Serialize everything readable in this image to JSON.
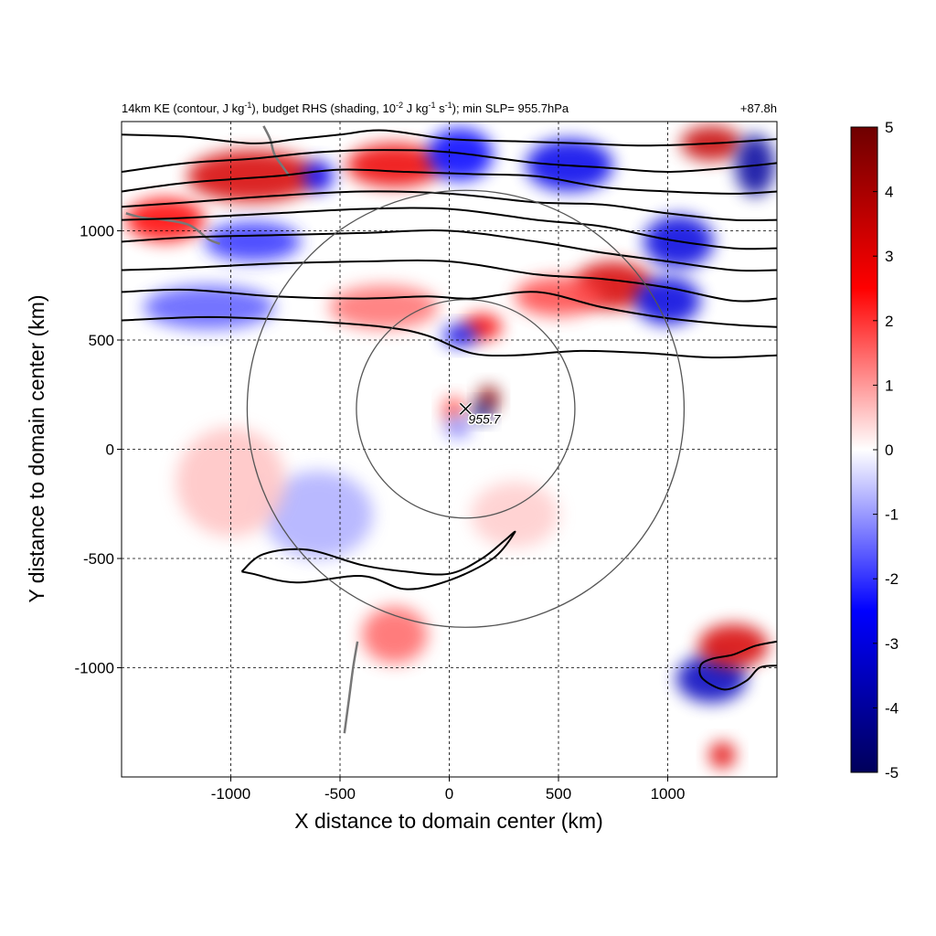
{
  "header": {
    "title_parts": [
      {
        "t": "14km KE (contour, J kg",
        "sup": false
      },
      {
        "t": "-1",
        "sup": true
      },
      {
        "t": "), budget RHS (shading, 10",
        "sup": false
      },
      {
        "t": "-2",
        "sup": true
      },
      {
        "t": " J kg",
        "sup": false
      },
      {
        "t": "-1",
        "sup": true
      },
      {
        "t": " s",
        "sup": false
      },
      {
        "t": "-1",
        "sup": true
      },
      {
        "t": "); min SLP= 955.7hPa",
        "sup": false
      }
    ],
    "lead_time": "+87.8h"
  },
  "chart_data": {
    "type": "heatmap",
    "xlabel": "X distance to domain center (km)",
    "ylabel": "Y distance to domain center (km)",
    "xlim": [
      -1500,
      1500
    ],
    "ylim": [
      -1500,
      1500
    ],
    "xticks": [
      -1000,
      -500,
      0,
      500,
      1000
    ],
    "yticks": [
      -1000,
      -500,
      0,
      500,
      1000
    ],
    "grid": "dashed",
    "colorbar": {
      "vmin": -5,
      "vmax": 5,
      "ticks": [
        -5,
        -4,
        -3,
        -2,
        -1,
        0,
        1,
        2,
        3,
        4,
        5
      ],
      "colors": [
        "#00005a",
        "#0000ff",
        "#ffffff",
        "#ff0000",
        "#6e0000"
      ],
      "placement": "right"
    },
    "storm_center": {
      "x": 75,
      "y": 185,
      "label": "955.7",
      "min_slp_hpa": 955.7
    },
    "range_circles": [
      {
        "cx": 75,
        "cy": 185,
        "r": 500
      },
      {
        "cx": 75,
        "cy": 185,
        "r": 1000
      }
    ],
    "shading_features": [
      {
        "x": -900,
        "y": 1250,
        "value": 3.2,
        "sx": 300,
        "sy": 120
      },
      {
        "x": -250,
        "y": 1300,
        "value": 2.8,
        "sx": 220,
        "sy": 100
      },
      {
        "x": 50,
        "y": 1350,
        "value": -2.5,
        "sx": 150,
        "sy": 120
      },
      {
        "x": 550,
        "y": 1300,
        "value": -2.8,
        "sx": 200,
        "sy": 120
      },
      {
        "x": 1200,
        "y": 1400,
        "value": 3.5,
        "sx": 140,
        "sy": 80
      },
      {
        "x": 1400,
        "y": 1300,
        "value": -4.0,
        "sx": 90,
        "sy": 140
      },
      {
        "x": 1050,
        "y": 950,
        "value": -3.0,
        "sx": 160,
        "sy": 120
      },
      {
        "x": 750,
        "y": 750,
        "value": 3.2,
        "sx": 180,
        "sy": 110
      },
      {
        "x": 1000,
        "y": 680,
        "value": -3.0,
        "sx": 150,
        "sy": 110
      },
      {
        "x": -900,
        "y": 950,
        "value": -2.0,
        "sx": 220,
        "sy": 90
      },
      {
        "x": -1300,
        "y": 1050,
        "value": 2.5,
        "sx": 180,
        "sy": 100
      },
      {
        "x": -1100,
        "y": 650,
        "value": -1.6,
        "sx": 300,
        "sy": 100
      },
      {
        "x": -300,
        "y": 650,
        "value": 1.4,
        "sx": 250,
        "sy": 100
      },
      {
        "x": 500,
        "y": 700,
        "value": 1.8,
        "sx": 200,
        "sy": 90
      },
      {
        "x": 150,
        "y": 560,
        "value": 2.6,
        "sx": 90,
        "sy": 60
      },
      {
        "x": 50,
        "y": 520,
        "value": -2.8,
        "sx": 80,
        "sy": 50
      },
      {
        "x": 180,
        "y": 230,
        "value": 4.5,
        "sx": 50,
        "sy": 60
      },
      {
        "x": 150,
        "y": 170,
        "value": -4.5,
        "sx": 45,
        "sy": 45
      },
      {
        "x": 20,
        "y": 180,
        "value": 1.8,
        "sx": 50,
        "sy": 60
      },
      {
        "x": 40,
        "y": 100,
        "value": -1.2,
        "sx": 60,
        "sy": 50
      },
      {
        "x": -250,
        "y": -850,
        "value": 1.5,
        "sx": 150,
        "sy": 130
      },
      {
        "x": -600,
        "y": -300,
        "value": -0.8,
        "sx": 250,
        "sy": 200
      },
      {
        "x": 1200,
        "y": -1050,
        "value": -3.5,
        "sx": 160,
        "sy": 110
      },
      {
        "x": 1300,
        "y": -900,
        "value": 3.2,
        "sx": 160,
        "sy": 100
      },
      {
        "x": 1250,
        "y": -1400,
        "value": 3.0,
        "sx": 60,
        "sy": 60
      },
      {
        "x": -1000,
        "y": -150,
        "value": 0.6,
        "sx": 250,
        "sy": 250
      },
      {
        "x": 300,
        "y": -300,
        "value": 0.5,
        "sx": 200,
        "sy": 150
      },
      {
        "x": -600,
        "y": 1250,
        "value": -2.6,
        "sx": 70,
        "sy": 70
      }
    ],
    "ke_contours": [
      [
        [
          -1500,
          590
        ],
        [
          -1100,
          605
        ],
        [
          -700,
          590
        ],
        [
          -300,
          560
        ],
        [
          -100,
          520
        ],
        [
          100,
          440
        ],
        [
          300,
          430
        ],
        [
          600,
          450
        ],
        [
          900,
          440
        ],
        [
          1200,
          420
        ],
        [
          1500,
          430
        ]
      ],
      [
        [
          -1500,
          720
        ],
        [
          -1200,
          730
        ],
        [
          -800,
          700
        ],
        [
          -400,
          690
        ],
        [
          -100,
          700
        ],
        [
          100,
          690
        ],
        [
          400,
          720
        ],
        [
          700,
          650
        ],
        [
          1000,
          600
        ],
        [
          1300,
          570
        ],
        [
          1500,
          560
        ]
      ],
      [
        [
          -1500,
          820
        ],
        [
          -1200,
          830
        ],
        [
          -800,
          850
        ],
        [
          -400,
          860
        ],
        [
          0,
          860
        ],
        [
          400,
          800
        ],
        [
          700,
          780
        ],
        [
          1000,
          740
        ],
        [
          1300,
          680
        ],
        [
          1500,
          690
        ]
      ],
      [
        [
          -1500,
          950
        ],
        [
          -1200,
          970
        ],
        [
          -800,
          980
        ],
        [
          -400,
          990
        ],
        [
          0,
          1000
        ],
        [
          400,
          950
        ],
        [
          700,
          900
        ],
        [
          1000,
          860
        ],
        [
          1300,
          820
        ],
        [
          1500,
          820
        ]
      ],
      [
        [
          -1500,
          1050
        ],
        [
          -1200,
          1060
        ],
        [
          -800,
          1080
        ],
        [
          -400,
          1100
        ],
        [
          0,
          1100
        ],
        [
          400,
          1050
        ],
        [
          700,
          1020
        ],
        [
          1000,
          960
        ],
        [
          1300,
          920
        ],
        [
          1500,
          920
        ]
      ],
      [
        [
          -1500,
          1110
        ],
        [
          -1200,
          1130
        ],
        [
          -800,
          1160
        ],
        [
          -400,
          1180
        ],
        [
          0,
          1170
        ],
        [
          400,
          1130
        ],
        [
          700,
          1120
        ],
        [
          1000,
          1080
        ],
        [
          1300,
          1050
        ],
        [
          1500,
          1050
        ]
      ],
      [
        [
          -1500,
          1180
        ],
        [
          -1200,
          1220
        ],
        [
          -800,
          1250
        ],
        [
          -500,
          1280
        ],
        [
          -200,
          1270
        ],
        [
          100,
          1260
        ],
        [
          400,
          1250
        ],
        [
          700,
          1200
        ],
        [
          1000,
          1180
        ],
        [
          1300,
          1170
        ],
        [
          1500,
          1180
        ]
      ],
      [
        [
          -1500,
          1270
        ],
        [
          -1200,
          1310
        ],
        [
          -900,
          1330
        ],
        [
          -600,
          1360
        ],
        [
          -300,
          1370
        ],
        [
          0,
          1360
        ],
        [
          400,
          1310
        ],
        [
          700,
          1290
        ],
        [
          1000,
          1270
        ],
        [
          1300,
          1290
        ],
        [
          1500,
          1310
        ]
      ],
      [
        [
          -1500,
          1440
        ],
        [
          -1200,
          1430
        ],
        [
          -900,
          1400
        ],
        [
          -700,
          1420
        ],
        [
          -500,
          1440
        ],
        [
          -300,
          1460
        ],
        [
          0,
          1420
        ],
        [
          300,
          1410
        ],
        [
          600,
          1400
        ],
        [
          900,
          1390
        ],
        [
          1200,
          1400
        ],
        [
          1500,
          1420
        ]
      ],
      [
        [
          -950,
          -560
        ],
        [
          -850,
          -480
        ],
        [
          -650,
          -460
        ],
        [
          -400,
          -530
        ],
        [
          -200,
          -560
        ],
        [
          0,
          -570
        ],
        [
          150,
          -500
        ],
        [
          250,
          -420
        ],
        [
          300,
          -380
        ],
        [
          200,
          -500
        ],
        [
          0,
          -600
        ],
        [
          -200,
          -640
        ],
        [
          -400,
          -580
        ],
        [
          -700,
          -610
        ],
        [
          -900,
          -570
        ],
        [
          -950,
          -560
        ]
      ],
      [
        [
          1500,
          -880
        ],
        [
          1400,
          -900
        ],
        [
          1300,
          -940
        ],
        [
          1200,
          -960
        ],
        [
          1150,
          -990
        ],
        [
          1160,
          -1050
        ],
        [
          1260,
          -1100
        ],
        [
          1360,
          -1060
        ],
        [
          1420,
          -1000
        ],
        [
          1500,
          -990
        ]
      ]
    ],
    "coastline": [
      [
        [
          -1480,
          1080
        ],
        [
          -1400,
          1060
        ],
        [
          -1300,
          1050
        ],
        [
          -1200,
          1030
        ],
        [
          -1150,
          1000
        ],
        [
          -1100,
          960
        ],
        [
          -1050,
          940
        ]
      ],
      [
        [
          -850,
          1480
        ],
        [
          -820,
          1420
        ],
        [
          -800,
          1350
        ],
        [
          -760,
          1290
        ],
        [
          -730,
          1250
        ]
      ],
      [
        [
          -420,
          -880
        ],
        [
          -440,
          -1000
        ],
        [
          -460,
          -1150
        ],
        [
          -480,
          -1300
        ]
      ]
    ]
  }
}
